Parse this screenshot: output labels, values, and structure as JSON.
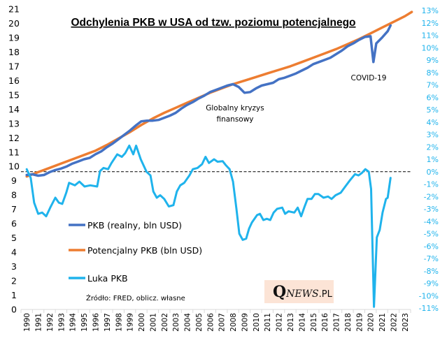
{
  "chart_data": {
    "type": "line",
    "title": "Odchylenia PKB w USA od tzw. poziomu potencjalnego",
    "xlabel": "",
    "ylabel": "",
    "y2label": "",
    "x_categories": [
      "1990",
      "1991",
      "1992",
      "1993",
      "1994",
      "1995",
      "1996",
      "1997",
      "1998",
      "1999",
      "2000",
      "2001",
      "2002",
      "2003",
      "2004",
      "2005",
      "2006",
      "2007",
      "2008",
      "2009",
      "2010",
      "2011",
      "2012",
      "2013",
      "2014",
      "2015",
      "2016",
      "2017",
      "2018",
      "2019",
      "2020",
      "2021",
      "2022",
      "2023"
    ],
    "ylim": [
      0,
      21
    ],
    "yticks": [
      "0",
      "1",
      "2",
      "3",
      "4",
      "5",
      "6",
      "7",
      "8",
      "9",
      "10",
      "11",
      "12",
      "13",
      "14",
      "15",
      "16",
      "17",
      "18",
      "19",
      "20",
      "21"
    ],
    "y2lim": [
      -11,
      13
    ],
    "y2ticks": [
      "-11%",
      "-10%",
      "-9%",
      "-8%",
      "-7%",
      "-6%",
      "-5%",
      "-4%",
      "-3%",
      "-2%",
      "-1%",
      "0%",
      "1%",
      "2%",
      "3%",
      "4%",
      "5%",
      "6%",
      "7%",
      "8%",
      "9%",
      "10%",
      "11%",
      "12%",
      "13%"
    ],
    "grid": false,
    "reference_line": {
      "axis": "y2",
      "value": 0,
      "style": "dashed"
    },
    "legend_position": "bottom-left",
    "series": [
      {
        "name": "PKB (realny, bln USD)",
        "axis": "left",
        "color": "#4472c4",
        "x": [
          1990.0,
          1990.5,
          1991.0,
          1991.5,
          1992.0,
          1992.5,
          1993.0,
          1993.5,
          1994.0,
          1994.5,
          1995.0,
          1995.5,
          1996.0,
          1996.5,
          1997.0,
          1997.5,
          1998.0,
          1998.5,
          1999.0,
          1999.5,
          2000.0,
          2000.5,
          2001.0,
          2001.5,
          2002.0,
          2002.5,
          2003.0,
          2003.5,
          2004.0,
          2004.5,
          2005.0,
          2005.5,
          2006.0,
          2006.5,
          2007.0,
          2007.5,
          2008.0,
          2008.5,
          2009.0,
          2009.5,
          2010.0,
          2010.5,
          2011.0,
          2011.5,
          2012.0,
          2012.5,
          2013.0,
          2013.5,
          2014.0,
          2014.5,
          2015.0,
          2015.5,
          2016.0,
          2016.5,
          2017.0,
          2017.5,
          2018.0,
          2018.5,
          2019.0,
          2019.5,
          2020.0,
          2020.25,
          2020.5,
          2021.0,
          2021.5,
          2021.75
        ],
        "values": [
          9.4,
          9.45,
          9.35,
          9.4,
          9.6,
          9.75,
          9.85,
          10.0,
          10.2,
          10.35,
          10.5,
          10.6,
          10.85,
          11.05,
          11.35,
          11.6,
          11.9,
          12.2,
          12.5,
          12.85,
          13.15,
          13.2,
          13.2,
          13.25,
          13.4,
          13.55,
          13.75,
          14.05,
          14.3,
          14.5,
          14.75,
          14.95,
          15.2,
          15.35,
          15.5,
          15.65,
          15.75,
          15.55,
          15.15,
          15.2,
          15.45,
          15.65,
          15.75,
          15.85,
          16.1,
          16.2,
          16.35,
          16.5,
          16.7,
          16.9,
          17.15,
          17.3,
          17.45,
          17.6,
          17.85,
          18.1,
          18.4,
          18.6,
          18.85,
          19.05,
          19.1,
          17.3,
          18.6,
          19.0,
          19.45,
          19.85
        ]
      },
      {
        "name": "Potencjalny PKB (bln USD)",
        "axis": "left",
        "color": "#ed7d31",
        "x": [
          1990,
          1991,
          1992,
          1993,
          1994,
          1995,
          1996,
          1997,
          1998,
          1999,
          2000,
          2001,
          2002,
          2003,
          2004,
          2005,
          2006,
          2007,
          2008,
          2009,
          2010,
          2011,
          2012,
          2013,
          2014,
          2015,
          2016,
          2017,
          2018,
          2019,
          2020,
          2021,
          2022,
          2023,
          2023.6
        ],
        "values": [
          9.3,
          9.6,
          9.9,
          10.2,
          10.5,
          10.8,
          11.1,
          11.5,
          11.95,
          12.4,
          12.9,
          13.35,
          13.75,
          14.1,
          14.45,
          14.8,
          15.15,
          15.45,
          15.75,
          16.0,
          16.25,
          16.5,
          16.75,
          17.0,
          17.3,
          17.6,
          17.9,
          18.2,
          18.55,
          18.9,
          19.3,
          19.7,
          20.1,
          20.5,
          20.8
        ]
      },
      {
        "name": "Luka PKB",
        "axis": "right",
        "color": "#1fb3ec",
        "x": [
          1990.0,
          1990.35,
          1990.65,
          1991.0,
          1991.35,
          1991.7,
          1992.05,
          1992.5,
          1992.8,
          1993.1,
          1993.45,
          1993.7,
          1994.2,
          1994.6,
          1995.05,
          1995.55,
          1996.15,
          1996.4,
          1996.7,
          1997.1,
          1997.4,
          1997.9,
          1998.3,
          1998.6,
          1998.95,
          1999.3,
          1999.55,
          1999.95,
          2000.45,
          2000.8,
          2001.05,
          2001.35,
          2001.65,
          2002.0,
          2002.4,
          2002.8,
          2003.1,
          2003.4,
          2003.75,
          2004.2,
          2004.5,
          2004.9,
          2005.3,
          2005.6,
          2005.9,
          2006.35,
          2006.65,
          2007.1,
          2007.4,
          2007.7,
          2008.0,
          2008.3,
          2008.55,
          2008.85,
          2009.15,
          2009.4,
          2009.65,
          2010.1,
          2010.35,
          2010.65,
          2010.95,
          2011.25,
          2011.55,
          2011.85,
          2012.3,
          2012.55,
          2012.85,
          2013.35,
          2013.65,
          2013.95,
          2014.25,
          2014.5,
          2014.85,
          2015.15,
          2015.45,
          2015.9,
          2016.3,
          2016.6,
          2016.95,
          2017.4,
          2017.8,
          2018.2,
          2018.65,
          2018.95,
          2019.25,
          2019.55,
          2019.85,
          2020.05,
          2020.3,
          2020.55,
          2020.8,
          2021.05,
          2021.35,
          2021.5,
          2021.75
        ],
        "values": [
          0.2,
          -0.5,
          -2.5,
          -3.4,
          -3.3,
          -3.6,
          -2.9,
          -2.1,
          -2.5,
          -2.6,
          -1.7,
          -0.9,
          -1.1,
          -0.8,
          -1.2,
          -1.1,
          -1.2,
          0.05,
          0.3,
          0.2,
          0.7,
          1.4,
          1.2,
          1.5,
          2.1,
          1.4,
          2.1,
          1.0,
          0.0,
          -0.3,
          -1.6,
          -2.1,
          -1.9,
          -2.2,
          -2.8,
          -2.7,
          -1.6,
          -1.1,
          -0.9,
          -0.3,
          0.2,
          0.3,
          0.6,
          1.2,
          0.7,
          1.0,
          0.8,
          0.85,
          0.5,
          0.2,
          -0.8,
          -3.0,
          -5.0,
          -5.5,
          -5.4,
          -4.6,
          -4.1,
          -3.5,
          -3.4,
          -3.9,
          -3.8,
          -3.9,
          -3.3,
          -3.0,
          -2.9,
          -3.4,
          -3.2,
          -3.3,
          -2.9,
          -3.6,
          -2.8,
          -2.2,
          -2.2,
          -1.8,
          -1.8,
          -2.1,
          -2.0,
          -2.2,
          -1.9,
          -1.7,
          -1.2,
          -0.7,
          -0.2,
          -0.3,
          -0.1,
          0.2,
          0.0,
          -1.4,
          -10.9,
          -5.3,
          -4.7,
          -3.3,
          -2.2,
          -2.1,
          -0.5
        ]
      }
    ],
    "annotations": [
      {
        "text": "COVID-19"
      },
      {
        "text": "Globalny kryzys finansowy",
        "lines": [
          "Globalny kryzys",
          "finansowy"
        ]
      }
    ],
    "source": "Źródło: FRED, oblicz. własne"
  },
  "logo": {
    "q": "Q",
    "news": "NEWS",
    "pl": ".PL"
  },
  "colors": {
    "axis": "#d9d9d9",
    "right_axis_text": "#1fb3ec",
    "logo_bg": "#fce4d6"
  }
}
